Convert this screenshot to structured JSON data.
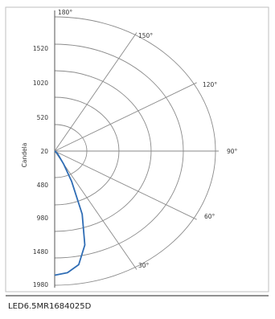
{
  "chart_data": {
    "type": "line",
    "polar": true,
    "ylabel": "Candela",
    "radial_tick_labels_upper": [
      "20",
      "520",
      "1020",
      "1520"
    ],
    "radial_tick_labels_lower": [
      "20",
      "480",
      "980",
      "1480",
      "1980"
    ],
    "angle_labels": [
      "180°",
      "150°",
      "120°",
      "90°",
      "60°",
      "30°"
    ],
    "angle_values_deg": [
      180,
      150,
      120,
      90,
      60,
      30
    ],
    "series": [
      {
        "color": "#2f6db5",
        "points": [
          {
            "angle": 0,
            "candela": 1850
          },
          {
            "angle": 5,
            "candela": 1820
          },
          {
            "angle": 10,
            "candela": 1720
          },
          {
            "angle": 15,
            "candela": 1450
          },
          {
            "angle": 20,
            "candela": 1000
          },
          {
            "angle": 25,
            "candela": 500
          },
          {
            "angle": 30,
            "candela": 220
          },
          {
            "angle": 40,
            "candela": 60
          },
          {
            "angle": 50,
            "candela": 15
          },
          {
            "angle": 60,
            "candela": 0
          }
        ]
      }
    ],
    "rlim": [
      0,
      2000
    ],
    "grid": true
  },
  "footer": {
    "caption": "LED6.5MR1684025D"
  },
  "colors": {
    "grid": "#8a8a8a",
    "series": "#2f6db5",
    "frame": "#bfbfbf"
  }
}
